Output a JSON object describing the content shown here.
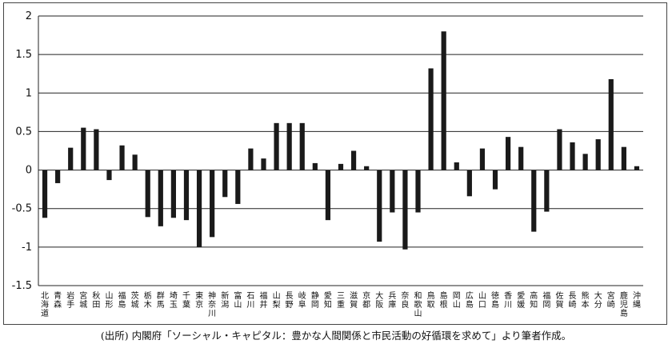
{
  "source_note": "(出所) 内閣府「ソーシャル・キャピタル：豊かな人間関係と市民活動の好循環を求めて」より筆者作成。",
  "chart_data": {
    "type": "bar",
    "ylim": [
      -1.5,
      2
    ],
    "yticks": [
      2,
      1.5,
      1,
      0.5,
      0,
      -0.5,
      -1,
      -1.5
    ],
    "ytick_labels": [
      "2",
      "1.5",
      "1",
      "0.5",
      "0",
      "-0.5",
      "-1",
      "-1.5"
    ],
    "grid": true,
    "legend": "none",
    "bar_color": "#1a1a1a",
    "categories": [
      "北海道",
      "青森",
      "岩手",
      "宮城",
      "秋田",
      "山形",
      "福島",
      "茨城",
      "栃木",
      "群馬",
      "埼玉",
      "千葉",
      "東京",
      "神奈川",
      "新潟",
      "富山",
      "石川",
      "福井",
      "山梨",
      "長野",
      "岐阜",
      "静岡",
      "愛知",
      "三重",
      "滋賀",
      "京都",
      "大阪",
      "兵庫",
      "奈良",
      "和歌山",
      "鳥取",
      "島根",
      "岡山",
      "広島",
      "山口",
      "徳島",
      "香川",
      "愛媛",
      "高知",
      "福岡",
      "佐賀",
      "長崎",
      "熊本",
      "大分",
      "宮崎",
      "鹿児島",
      "沖縄"
    ],
    "values": [
      -0.62,
      -0.17,
      0.29,
      0.55,
      0.53,
      -0.13,
      0.32,
      0.2,
      -0.61,
      -0.73,
      -0.62,
      -0.65,
      -1.0,
      -0.87,
      -0.35,
      -0.44,
      0.28,
      0.15,
      0.61,
      0.61,
      0.61,
      0.09,
      -0.65,
      0.08,
      0.25,
      0.05,
      -0.93,
      -0.55,
      -1.03,
      -0.55,
      1.32,
      1.8,
      0.1,
      -0.34,
      0.28,
      -0.25,
      0.43,
      0.3,
      -0.8,
      -0.54,
      0.53,
      0.36,
      0.21,
      0.4,
      1.18,
      0.3,
      0.05
    ]
  }
}
